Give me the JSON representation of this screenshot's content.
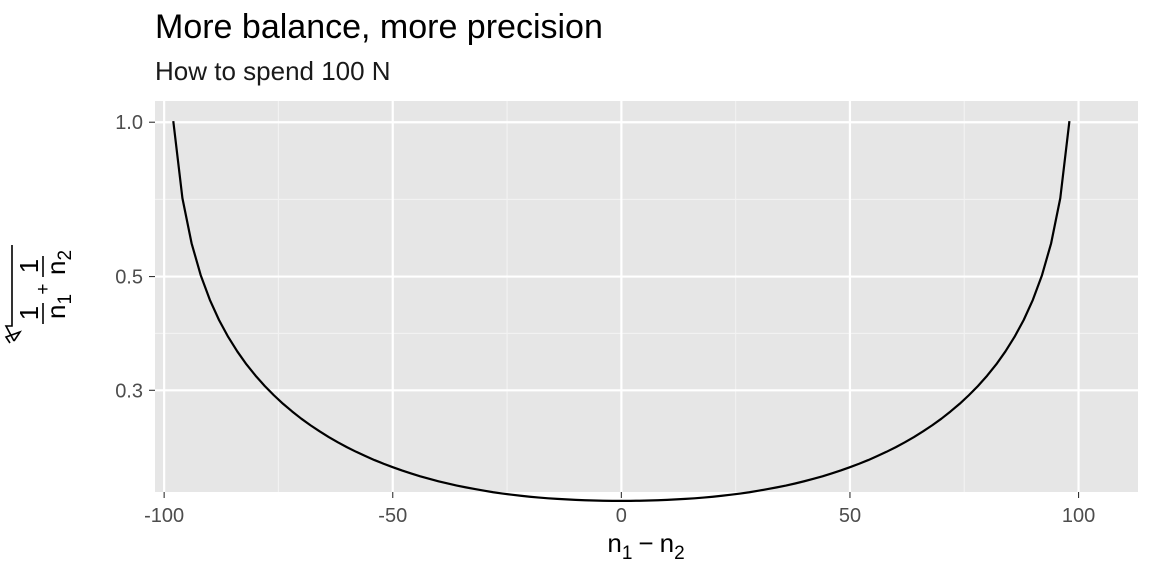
{
  "chart_data": {
    "type": "line",
    "title": "More balance, more precision",
    "subtitle": "How to spend 100 N",
    "xlabel": {
      "main": "n",
      "sub1": "1",
      "minus": "−",
      "main2": "n",
      "sub2": "2"
    },
    "ylabel": {
      "one": "1",
      "n": "n",
      "plus": "+",
      "sub1": "1",
      "sub2": "2"
    },
    "xlim": [
      -102,
      113
    ],
    "ylim": [
      0.19,
      1.1
    ],
    "y_scale": "log",
    "x_ticks": [
      -100,
      -50,
      0,
      50,
      100
    ],
    "x_tick_labels": [
      "-100",
      "-50",
      "0",
      "50",
      "100"
    ],
    "x_minor_ticks": [
      -75,
      -25,
      25,
      75
    ],
    "y_ticks": [
      0.3,
      0.5,
      1.0
    ],
    "y_tick_labels": [
      "0.3",
      "0.5",
      "1.0"
    ],
    "y_minor_ticks": [
      0.3873,
      0.7071
    ],
    "grid": true,
    "series": [
      {
        "x": [
          -98,
          -96,
          -94,
          -92,
          -90,
          -88,
          -86,
          -84,
          -82,
          -80,
          -78,
          -76,
          -74,
          -72,
          -70,
          -68,
          -66,
          -64,
          -62,
          -60,
          -58,
          -56,
          -54,
          -52,
          -50,
          -48,
          -46,
          -44,
          -42,
          -40,
          -38,
          -36,
          -34,
          -32,
          -30,
          -28,
          -26,
          -24,
          -22,
          -20,
          -18,
          -16,
          -14,
          -12,
          -10,
          -8,
          -6,
          -4,
          -2,
          0,
          2,
          4,
          6,
          8,
          10,
          12,
          14,
          16,
          18,
          20,
          22,
          24,
          26,
          28,
          30,
          32,
          34,
          36,
          38,
          40,
          42,
          44,
          46,
          48,
          50,
          52,
          54,
          56,
          58,
          60,
          62,
          64,
          66,
          68,
          70,
          72,
          74,
          76,
          78,
          80,
          82,
          84,
          86,
          88,
          90,
          92,
          94,
          96,
          98
        ],
        "y": [
          1.005,
          0.7107,
          0.5806,
          0.503,
          0.4502,
          0.4114,
          0.3814,
          0.3572,
          0.3371,
          0.3203,
          0.3059,
          0.2934,
          0.2824,
          0.2728,
          0.2641,
          0.2564,
          0.2495,
          0.2432,
          0.2375,
          0.2323,
          0.2276,
          0.2233,
          0.2193,
          0.2157,
          0.2124,
          0.2093,
          0.2065,
          0.2039,
          0.2016,
          0.1994,
          0.1974,
          0.1956,
          0.194,
          0.1925,
          0.1911,
          0.1898,
          0.1887,
          0.1877,
          0.1868,
          0.186,
          0.1853,
          0.1847,
          0.1842,
          0.1838,
          0.1834,
          0.1831,
          0.1829,
          0.1827,
          0.1826,
          0.1826,
          0.1826,
          0.1827,
          0.1829,
          0.1831,
          0.1834,
          0.1838,
          0.1842,
          0.1847,
          0.1853,
          0.186,
          0.1868,
          0.1877,
          0.1887,
          0.1898,
          0.1911,
          0.1925,
          0.194,
          0.1956,
          0.1974,
          0.1994,
          0.2016,
          0.2039,
          0.2065,
          0.2093,
          0.2124,
          0.2157,
          0.2193,
          0.2233,
          0.2276,
          0.2323,
          0.2375,
          0.2432,
          0.2495,
          0.2564,
          0.2641,
          0.2728,
          0.2824,
          0.2934,
          0.3059,
          0.3203,
          0.3371,
          0.3572,
          0.3814,
          0.4114,
          0.4502,
          0.503,
          0.5806,
          0.7107,
          1.005
        ]
      }
    ]
  }
}
